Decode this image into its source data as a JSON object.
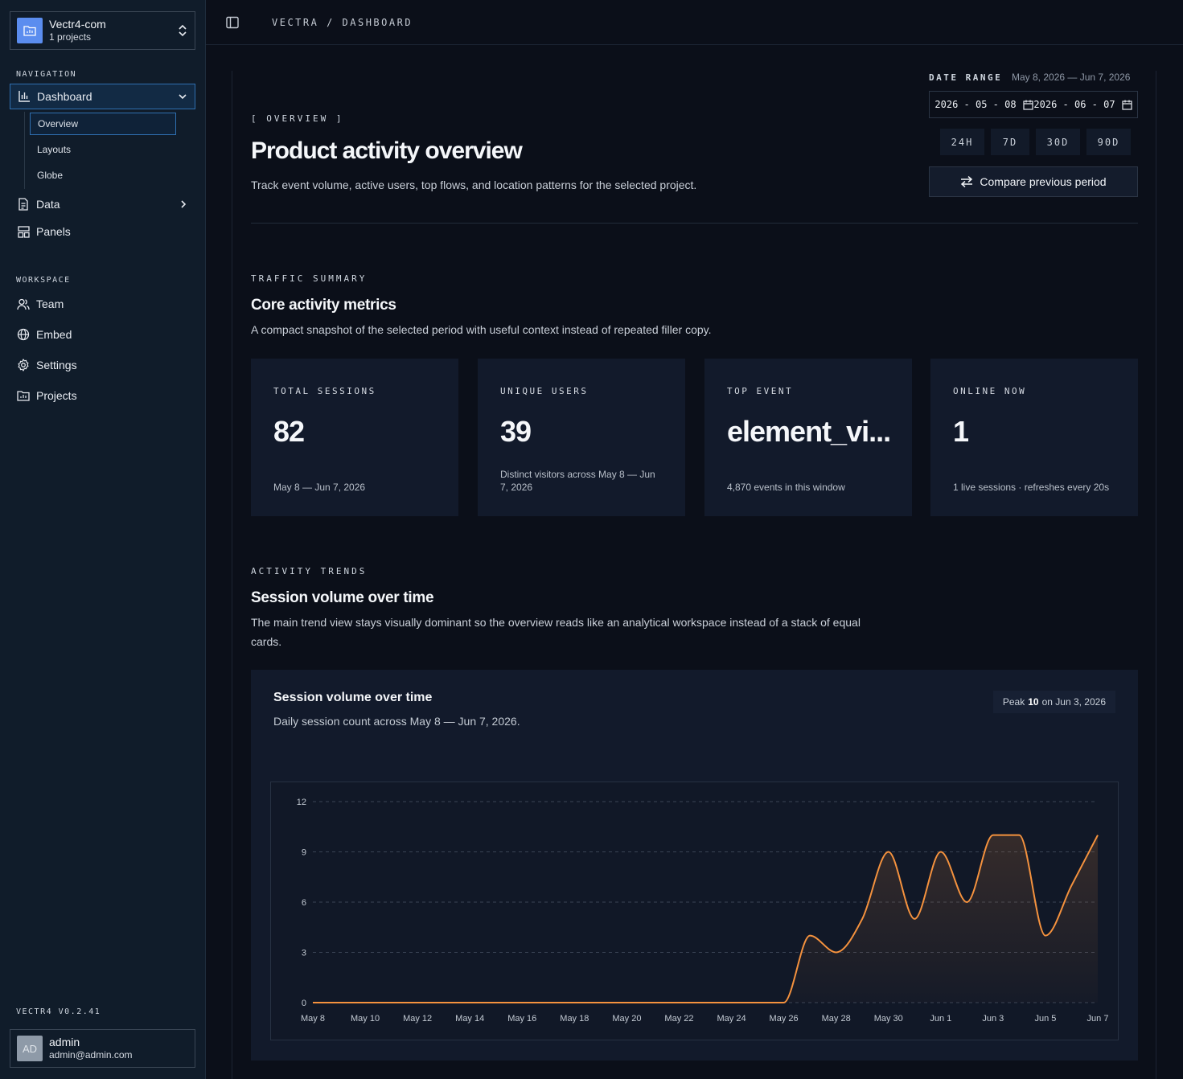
{
  "project": {
    "name": "Vectr4-com",
    "count_label": "1 projects"
  },
  "nav": {
    "section_label": "NAVIGATION",
    "dashboard": "Dashboard",
    "sub": [
      "Overview",
      "Layouts",
      "Globe"
    ],
    "data": "Data",
    "panels": "Panels"
  },
  "workspace": {
    "section_label": "WORKSPACE",
    "items": [
      "Team",
      "Embed",
      "Settings",
      "Projects"
    ]
  },
  "version": "VECTR4 V0.2.41",
  "user": {
    "initials": "AD",
    "name": "admin",
    "email": "admin@admin.com"
  },
  "breadcrumb": "VECTRA / DASHBOARD",
  "header": {
    "eyebrow": "[ OVERVIEW ]",
    "title": "Product activity overview",
    "description": "Track event volume, active users, top flows, and location patterns for the selected project."
  },
  "date_range": {
    "label": "DATE RANGE",
    "value": "May 8, 2026 — Jun 7, 2026",
    "start": "2026 - 05 - 08",
    "end": "2026 - 06 - 07",
    "ranges": [
      "24H",
      "7D",
      "30D",
      "90D"
    ],
    "compare_label": "Compare previous period"
  },
  "traffic": {
    "eyebrow": "TRAFFIC SUMMARY",
    "title": "Core activity metrics",
    "description": "A compact snapshot of the selected period with useful context instead of repeated filler copy.",
    "cards": [
      {
        "label": "TOTAL SESSIONS",
        "value": "82",
        "note": "May 8 — Jun 7, 2026"
      },
      {
        "label": "UNIQUE USERS",
        "value": "39",
        "note": "Distinct visitors across May 8 — Jun 7, 2026"
      },
      {
        "label": "TOP EVENT",
        "value": "element_vi...",
        "note": "4,870 events in this window"
      },
      {
        "label": "ONLINE NOW",
        "value": "1",
        "note": "1 live sessions · refreshes every 20s"
      }
    ]
  },
  "trends": {
    "eyebrow": "ACTIVITY TRENDS",
    "title": "Session volume over time",
    "description": "The main trend view stays visually dominant so the overview reads like an analytical workspace instead of a stack of equal cards.",
    "panel_title": "Session volume over time",
    "panel_subtitle": "Daily session count across May 8 — Jun 7, 2026.",
    "peak_prefix": "Peak",
    "peak_value": "10",
    "peak_suffix": "on Jun 3, 2026"
  },
  "colors": {
    "line": "#f5923e",
    "accent": "#2f6fb0",
    "project_icon": "#5b8def"
  },
  "chart_data": {
    "type": "line",
    "x": [
      "May 8",
      "May 9",
      "May 10",
      "May 11",
      "May 12",
      "May 13",
      "May 14",
      "May 15",
      "May 16",
      "May 17",
      "May 18",
      "May 19",
      "May 20",
      "May 21",
      "May 22",
      "May 23",
      "May 24",
      "May 25",
      "May 26",
      "May 27",
      "May 28",
      "May 29",
      "May 30",
      "May 31",
      "Jun 1",
      "Jun 2",
      "Jun 3",
      "Jun 4",
      "Jun 5",
      "Jun 6",
      "Jun 7"
    ],
    "series": [
      {
        "values": [
          0,
          0,
          0,
          0,
          0,
          0,
          0,
          0,
          0,
          0,
          0,
          0,
          0,
          0,
          0,
          0,
          0,
          0,
          0,
          4,
          3,
          5,
          9,
          5,
          9,
          6,
          10,
          10,
          4,
          7,
          10
        ]
      }
    ],
    "x_tick_labels": [
      "May 8",
      "May 10",
      "May 12",
      "May 14",
      "May 16",
      "May 18",
      "May 20",
      "May 22",
      "May 24",
      "May 26",
      "May 28",
      "May 30",
      "Jun 1",
      "Jun 3",
      "Jun 5",
      "Jun 7"
    ],
    "y_ticks": [
      0,
      3,
      6,
      9,
      12
    ],
    "ylim": [
      0,
      12
    ],
    "grid": true
  }
}
